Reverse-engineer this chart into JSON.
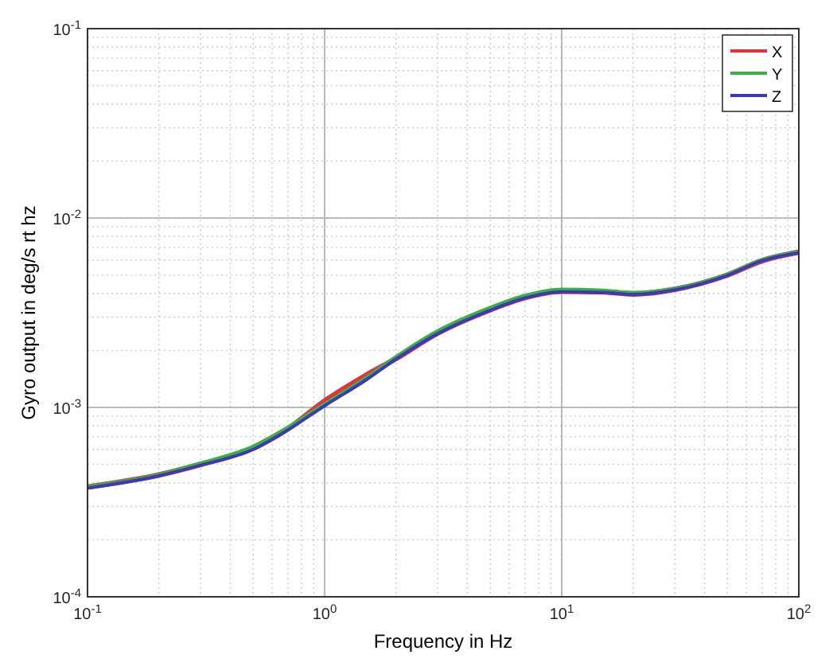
{
  "chart_data": {
    "type": "line",
    "xlabel": "Frequency in Hz",
    "ylabel": "Gyro output in deg/s rt hz",
    "log": "xy",
    "grid": true,
    "legend": "top right",
    "line_style": "solid",
    "marker": "none",
    "x": [
      0.1,
      0.2,
      0.3,
      0.5,
      0.7,
      1,
      1.5,
      2,
      3,
      5,
      7,
      10,
      15,
      20,
      30,
      50,
      70,
      100
    ],
    "xlim": [
      0.1,
      100
    ],
    "ylim": [
      0.0001,
      0.1
    ],
    "xticks": [
      {
        "value": 0.1,
        "label": "10$^{-1}$"
      },
      {
        "value": 1,
        "label": "10$^{0}$"
      },
      {
        "value": 10,
        "label": "10$^{1}$"
      },
      {
        "value": 100,
        "label": "10$^{2}$"
      }
    ],
    "yticks": [
      {
        "value": 0.0001,
        "label": "10$^{-4}$"
      },
      {
        "value": 0.001,
        "label": "10$^{-3}$"
      },
      {
        "value": 0.01,
        "label": "10$^{-2}$"
      },
      {
        "value": 0.1,
        "label": "10$^{-1}$"
      }
    ],
    "series": [
      {
        "name": "X",
        "color": "#e8303a",
        "values": [
          0.00038,
          0.00044,
          0.0005,
          0.00061,
          0.00077,
          0.00108,
          0.00148,
          0.00181,
          0.00247,
          0.00328,
          0.0038,
          0.0041,
          0.00407,
          0.00397,
          0.0042,
          0.005,
          0.00595,
          0.0066
        ]
      },
      {
        "name": "Y",
        "color": "#3cb043",
        "values": [
          0.00038,
          0.00044,
          0.000505,
          0.00062,
          0.00078,
          0.00104,
          0.00143,
          0.00184,
          0.00252,
          0.00335,
          0.00388,
          0.00418,
          0.00413,
          0.00402,
          0.00423,
          0.00502,
          0.006,
          0.0066
        ]
      },
      {
        "name": "Z",
        "color": "#3a3ab8",
        "values": [
          0.000375,
          0.000435,
          0.000495,
          0.0006,
          0.00076,
          0.00102,
          0.0014,
          0.0018,
          0.00245,
          0.00326,
          0.00378,
          0.00408,
          0.00405,
          0.00395,
          0.00418,
          0.00498,
          0.00595,
          0.00655
        ]
      }
    ]
  }
}
